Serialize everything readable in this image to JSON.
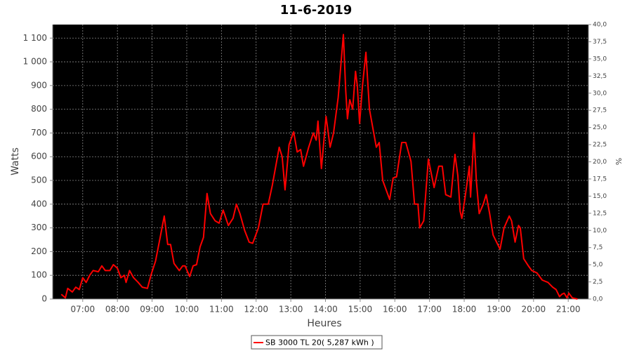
{
  "chart_data": {
    "type": "line",
    "title": "11-6-2019",
    "xlabel": "Heures",
    "ylabel": "Watts",
    "y2label": "%",
    "x": [
      "06:23",
      "06:30",
      "06:34",
      "06:42",
      "06:48",
      "06:54",
      "07:00",
      "07:06",
      "07:12",
      "07:18",
      "07:27",
      "07:33",
      "07:39",
      "07:47",
      "07:53",
      "08:00",
      "08:06",
      "08:12",
      "08:15",
      "08:21",
      "08:28",
      "08:36",
      "08:43",
      "08:52",
      "08:58",
      "09:06",
      "09:14",
      "09:21",
      "09:27",
      "09:32",
      "09:38",
      "09:47",
      "09:53",
      "09:57",
      "10:05",
      "10:11",
      "10:17",
      "10:23",
      "10:29",
      "10:35",
      "10:41",
      "10:49",
      "10:56",
      "11:03",
      "11:12",
      "11:20",
      "11:26",
      "11:32",
      "11:40",
      "11:48",
      "11:54",
      "12:04",
      "12:12",
      "12:21",
      "12:28",
      "12:34",
      "12:40",
      "12:45",
      "12:50",
      "12:57",
      "13:05",
      "13:11",
      "13:17",
      "13:22",
      "13:31",
      "13:39",
      "13:44",
      "13:47",
      "13:53",
      "14:01",
      "14:08",
      "14:14",
      "14:22",
      "14:31",
      "14:35",
      "14:38",
      "14:42",
      "14:47",
      "14:52",
      "14:55",
      "14:59",
      "15:04",
      "15:10",
      "15:16",
      "15:22",
      "15:28",
      "15:33",
      "15:39",
      "15:45",
      "15:51",
      "15:57",
      "16:03",
      "16:12",
      "16:19",
      "16:28",
      "16:34",
      "16:40",
      "16:43",
      "16:50",
      "16:58",
      "17:08",
      "17:16",
      "17:22",
      "17:28",
      "17:37",
      "17:44",
      "17:49",
      "17:53",
      "17:56",
      "18:01",
      "18:09",
      "18:11",
      "18:17",
      "18:21",
      "18:26",
      "18:33",
      "18:38",
      "18:44",
      "18:50",
      "19:02",
      "19:09",
      "19:18",
      "19:22",
      "19:28",
      "19:34",
      "19:37",
      "19:43",
      "19:51",
      "19:57",
      "20:06",
      "20:15",
      "20:25",
      "20:33",
      "20:39",
      "20:45",
      "20:49",
      "20:53",
      "20:58",
      "21:01",
      "21:07",
      "21:16"
    ],
    "series": [
      {
        "name": "SB 3000 TL 20( 5,287 kWh )",
        "color": "#ff0000",
        "values": [
          20,
          5,
          45,
          30,
          50,
          40,
          90,
          70,
          100,
          120,
          115,
          140,
          120,
          120,
          145,
          130,
          90,
          100,
          70,
          120,
          90,
          70,
          50,
          45,
          100,
          160,
          260,
          350,
          230,
          230,
          150,
          120,
          140,
          140,
          95,
          140,
          145,
          220,
          260,
          445,
          360,
          330,
          320,
          375,
          310,
          340,
          400,
          360,
          290,
          240,
          235,
          300,
          400,
          400,
          480,
          560,
          640,
          600,
          460,
          650,
          705,
          620,
          630,
          560,
          640,
          700,
          670,
          750,
          550,
          770,
          640,
          700,
          850,
          1115,
          880,
          760,
          840,
          800,
          960,
          900,
          740,
          900,
          1040,
          800,
          720,
          640,
          660,
          500,
          460,
          420,
          510,
          515,
          660,
          660,
          580,
          400,
          400,
          300,
          330,
          590,
          470,
          560,
          560,
          440,
          430,
          610,
          520,
          370,
          340,
          420,
          560,
          430,
          700,
          500,
          360,
          400,
          440,
          360,
          270,
          210,
          300,
          350,
          330,
          240,
          310,
          300,
          170,
          140,
          120,
          110,
          80,
          70,
          50,
          40,
          10,
          20,
          25,
          5,
          25,
          5,
          0
        ]
      }
    ],
    "xlim": [
      "06:08",
      "21:35"
    ],
    "xticks": [
      "07:00",
      "08:00",
      "09:00",
      "10:00",
      "11:00",
      "12:00",
      "13:00",
      "14:00",
      "15:00",
      "16:00",
      "17:00",
      "18:00",
      "19:00",
      "20:00",
      "21:00"
    ],
    "ylim": [
      0,
      1157
    ],
    "yticks": [
      0,
      100,
      200,
      300,
      400,
      500,
      600,
      700,
      800,
      900,
      {
        "value": 1000,
        "label": "1 000"
      },
      {
        "value": 1100,
        "label": "1 100"
      }
    ],
    "y2lim": [
      0,
      40
    ],
    "y2ticks": [
      {
        "value": 0,
        "label": "0,0"
      },
      {
        "value": 2.5,
        "label": "2,5"
      },
      {
        "value": 5,
        "label": "5,0"
      },
      {
        "value": 7.5,
        "label": "7,5"
      },
      {
        "value": 10,
        "label": "10,0"
      },
      {
        "value": 12.5,
        "label": "12,5"
      },
      {
        "value": 15,
        "label": "15,0"
      },
      {
        "value": 17.5,
        "label": "17,5"
      },
      {
        "value": 20,
        "label": "20,0"
      },
      {
        "value": 22.5,
        "label": "22,5"
      },
      {
        "value": 25,
        "label": "25,0"
      },
      {
        "value": 27.5,
        "label": "27,5"
      },
      {
        "value": 30,
        "label": "30,0"
      },
      {
        "value": 32.5,
        "label": "32,5"
      },
      {
        "value": 35,
        "label": "35,0"
      },
      {
        "value": 37.5,
        "label": "37,5"
      },
      {
        "value": 40,
        "label": "40,0"
      }
    ],
    "grid": true
  }
}
